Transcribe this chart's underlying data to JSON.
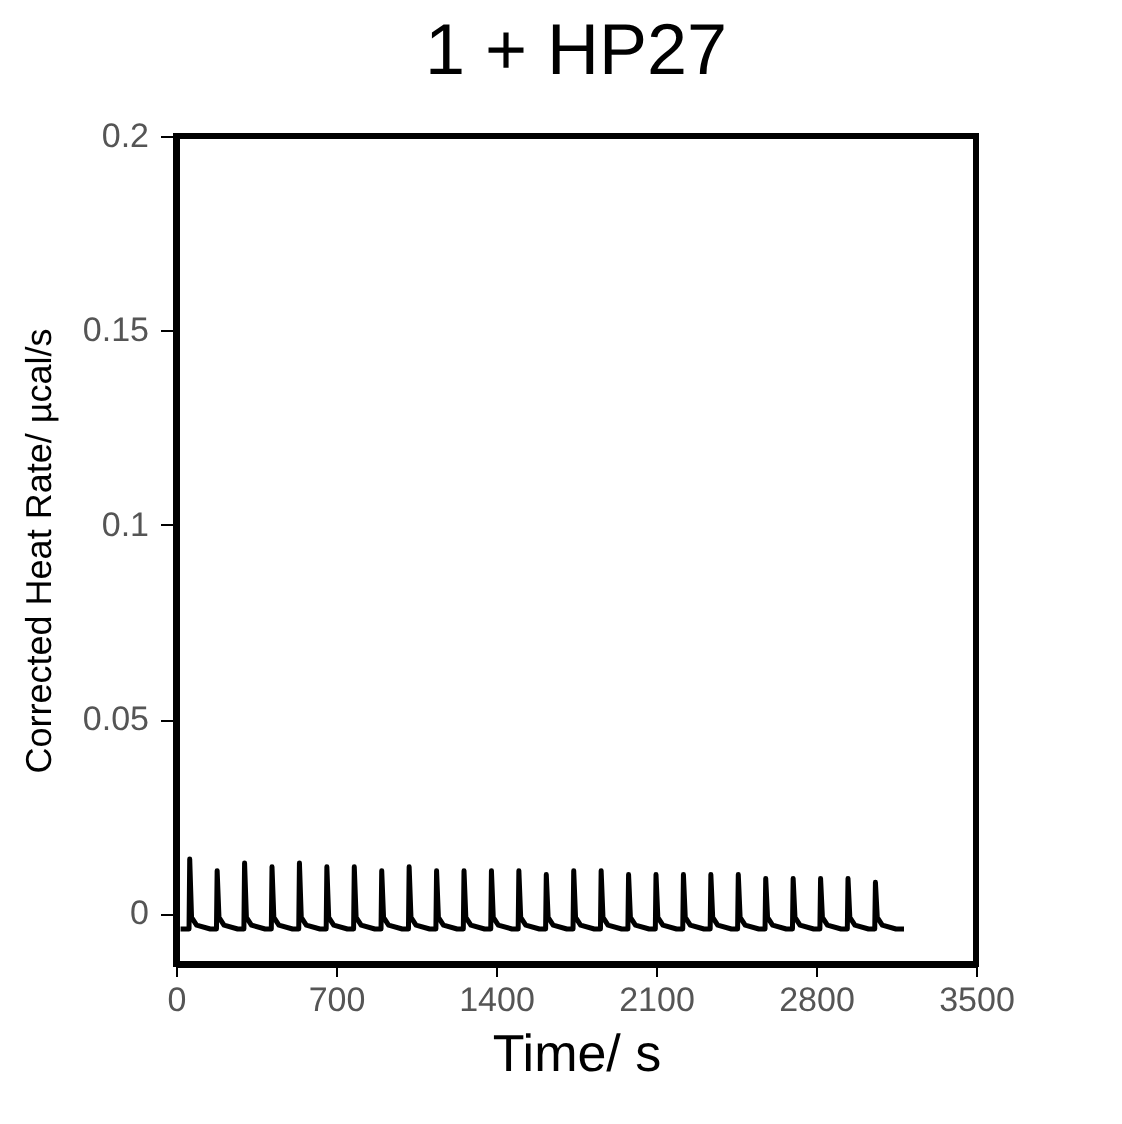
{
  "chart_data": {
    "type": "line",
    "title": "1 + HP27",
    "xlabel": "Time/ s",
    "ylabel": "Corrected Heat Rate/ µcal/s",
    "xlim": [
      0,
      3500
    ],
    "xticks": [
      0,
      700,
      1400,
      2100,
      2800,
      3500
    ],
    "ylim": [
      -0.013,
      0.2
    ],
    "yticks": [
      0,
      0.05,
      0.1,
      0.15,
      0.2
    ],
    "grid": false,
    "series": [
      {
        "color": "#000000",
        "x": [
          20,
          57,
          60,
          68,
          90,
          150,
          177,
          180,
          188,
          210,
          270,
          297,
          300,
          308,
          330,
          390,
          417,
          420,
          428,
          450,
          510,
          537,
          540,
          548,
          570,
          630,
          657,
          660,
          668,
          690,
          750,
          777,
          780,
          788,
          810,
          870,
          897,
          900,
          908,
          930,
          990,
          1017,
          1020,
          1028,
          1050,
          1110,
          1137,
          1140,
          1148,
          1170,
          1230,
          1257,
          1260,
          1268,
          1290,
          1350,
          1377,
          1380,
          1388,
          1410,
          1470,
          1497,
          1500,
          1508,
          1530,
          1590,
          1617,
          1620,
          1628,
          1650,
          1710,
          1737,
          1740,
          1748,
          1770,
          1830,
          1857,
          1860,
          1868,
          1890,
          1950,
          1977,
          1980,
          1988,
          2010,
          2070,
          2097,
          2100,
          2108,
          2130,
          2190,
          2217,
          2220,
          2228,
          2250,
          2310,
          2337,
          2340,
          2348,
          2370,
          2430,
          2457,
          2460,
          2468,
          2490,
          2550,
          2577,
          2580,
          2588,
          2610,
          2670,
          2697,
          2700,
          2708,
          2730,
          2790,
          2817,
          2820,
          2828,
          2850,
          2910,
          2937,
          2940,
          2948,
          2970,
          3030,
          3057,
          3060,
          3068,
          3090,
          3150,
          3185
        ],
        "values": [
          -0.004,
          -0.004,
          0.014,
          -0.001,
          -0.003,
          -0.004,
          -0.004,
          0.011,
          -0.001,
          -0.003,
          -0.004,
          -0.004,
          0.013,
          -0.001,
          -0.003,
          -0.004,
          -0.004,
          0.012,
          -0.001,
          -0.003,
          -0.004,
          -0.004,
          0.013,
          -0.001,
          -0.003,
          -0.004,
          -0.004,
          0.012,
          -0.001,
          -0.003,
          -0.004,
          -0.004,
          0.012,
          -0.001,
          -0.003,
          -0.004,
          -0.004,
          0.011,
          -0.001,
          -0.003,
          -0.004,
          -0.004,
          0.012,
          -0.001,
          -0.003,
          -0.004,
          -0.004,
          0.011,
          -0.001,
          -0.003,
          -0.004,
          -0.004,
          0.011,
          -0.001,
          -0.003,
          -0.004,
          -0.004,
          0.011,
          -0.001,
          -0.003,
          -0.004,
          -0.004,
          0.011,
          -0.001,
          -0.003,
          -0.004,
          -0.004,
          0.01,
          -0.001,
          -0.003,
          -0.004,
          -0.004,
          0.011,
          -0.001,
          -0.003,
          -0.004,
          -0.004,
          0.011,
          -0.001,
          -0.003,
          -0.004,
          -0.004,
          0.01,
          -0.001,
          -0.003,
          -0.004,
          -0.004,
          0.01,
          -0.001,
          -0.003,
          -0.004,
          -0.004,
          0.01,
          -0.001,
          -0.003,
          -0.004,
          -0.004,
          0.01,
          -0.001,
          -0.003,
          -0.004,
          -0.004,
          0.01,
          -0.001,
          -0.003,
          -0.004,
          -0.004,
          0.009,
          -0.001,
          -0.003,
          -0.004,
          -0.004,
          0.009,
          -0.001,
          -0.003,
          -0.004,
          -0.004,
          0.009,
          -0.001,
          -0.003,
          -0.004,
          -0.004,
          0.009,
          -0.001,
          -0.003,
          -0.004,
          -0.004,
          0.008,
          -0.001,
          -0.003,
          -0.004,
          -0.004
        ]
      }
    ]
  }
}
